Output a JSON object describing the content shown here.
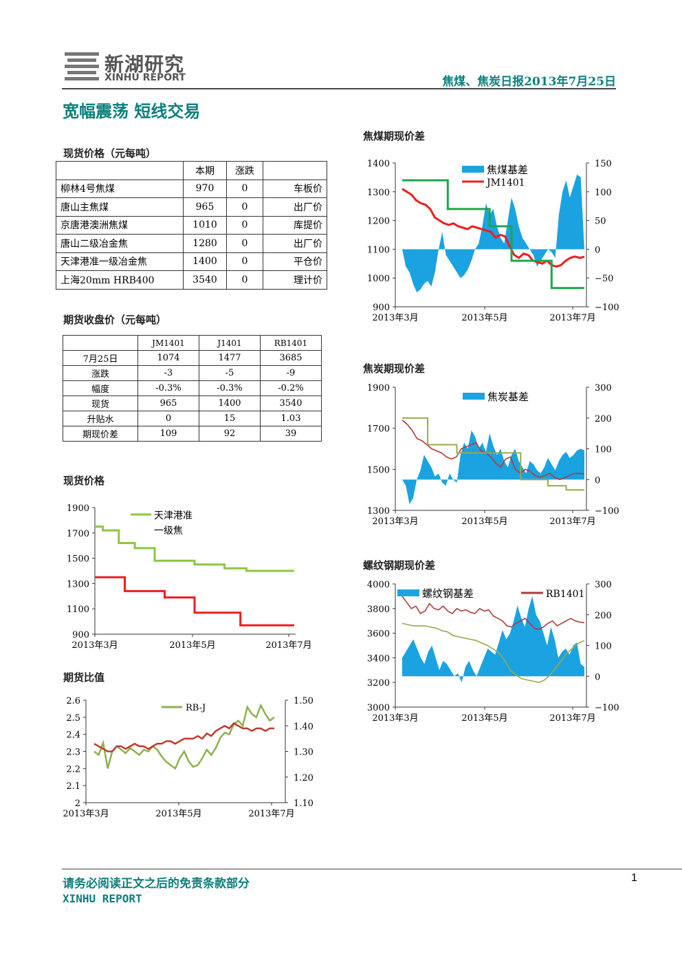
{
  "header": {
    "logo_cn": "新湖研究",
    "logo_en": "XINHU REPORT",
    "report_title": "焦煤、焦炭日报2013年7月25日"
  },
  "headline": "宽幅震荡 短线交易",
  "spot_table": {
    "title": "现货价格（元每吨）",
    "columns": [
      "",
      "本期",
      "涨跌",
      ""
    ],
    "rows": [
      {
        "name": "柳林4号焦煤",
        "price": "970",
        "change": "0",
        "type": "车板价"
      },
      {
        "name": "唐山主焦煤",
        "price": "965",
        "change": "0",
        "type": "出厂价"
      },
      {
        "name": "京唐港澳洲焦煤",
        "price": "1010",
        "change": "0",
        "type": "库提价"
      },
      {
        "name": "唐山二级冶金焦",
        "price": "1280",
        "change": "0",
        "type": "出厂价"
      },
      {
        "name": "天津港准一级冶金焦",
        "price": "1400",
        "change": "0",
        "type": "平仓价"
      },
      {
        "name": "上海20mm HRB400",
        "price": "3540",
        "change": "0",
        "type": "理计价"
      }
    ]
  },
  "futures_table": {
    "title": "期货收盘价（元每吨）",
    "columns": [
      "",
      "JM1401",
      "J1401",
      "RB1401"
    ],
    "rows": [
      [
        "7月25日",
        "1074",
        "1477",
        "3685"
      ],
      [
        "涨跌",
        "-3",
        "-5",
        "-9"
      ],
      [
        "幅度",
        "-0.3%",
        "-0.3%",
        "-0.2%"
      ],
      [
        "现货",
        "965",
        "1400",
        "3540"
      ],
      [
        "升贴水",
        "0",
        "15",
        "1.03"
      ],
      [
        "期现价差",
        "109",
        "92",
        "39"
      ]
    ]
  },
  "sections": {
    "spot_price": "现货价格",
    "futures_ratio": "期货比值",
    "jm_basis": "焦煤期现价差",
    "j_basis": "焦炭期现价差",
    "rb_basis": "螺纹钢期现价差"
  },
  "chart_data": [
    {
      "id": "spot_price",
      "type": "line",
      "x_ticks": [
        "2013年3月",
        "2013年5月",
        "2013年7月"
      ],
      "y_ticks": [
        "1900",
        "1700",
        "1500",
        "1300",
        "1100",
        "900"
      ],
      "ylim": [
        900,
        1900
      ],
      "series": [
        {
          "name": "天津港准一级焦",
          "color": "#8dc63f",
          "points": [
            [
              0,
              1750
            ],
            [
              0.04,
              1750
            ],
            [
              0.04,
              1720
            ],
            [
              0.12,
              1720
            ],
            [
              0.12,
              1620
            ],
            [
              0.2,
              1620
            ],
            [
              0.2,
              1580
            ],
            [
              0.3,
              1580
            ],
            [
              0.3,
              1480
            ],
            [
              0.5,
              1480
            ],
            [
              0.5,
              1450
            ],
            [
              0.65,
              1450
            ],
            [
              0.65,
              1420
            ],
            [
              0.76,
              1420
            ],
            [
              0.76,
              1400
            ],
            [
              1,
              1400
            ]
          ]
        },
        {
          "name": "",
          "color": "#ee1c1c",
          "points": [
            [
              0,
              1350
            ],
            [
              0.15,
              1350
            ],
            [
              0.15,
              1240
            ],
            [
              0.35,
              1240
            ],
            [
              0.35,
              1190
            ],
            [
              0.5,
              1190
            ],
            [
              0.5,
              1070
            ],
            [
              0.73,
              1070
            ],
            [
              0.73,
              970
            ],
            [
              1,
              970
            ]
          ]
        }
      ]
    },
    {
      "id": "futures_ratio",
      "type": "line",
      "x_ticks": [
        "2013年3月",
        "2013年5月",
        "2013年7月"
      ],
      "y_left_ticks": [
        "2.6",
        "2.5",
        "2.4",
        "2.3",
        "2.2",
        "2.1",
        "2"
      ],
      "y_right_ticks": [
        "1.50",
        "1.40",
        "1.30",
        "1.20",
        "1.10"
      ],
      "ylim_left": [
        2.0,
        2.6
      ],
      "ylim_right": [
        1.1,
        1.5
      ],
      "series": [
        {
          "name": "RB-J",
          "color": "#8db050",
          "axis": "left",
          "values": [
            2.3,
            2.28,
            2.35,
            2.2,
            2.3,
            2.33,
            2.31,
            2.29,
            2.32,
            2.3,
            2.28,
            2.31,
            2.3,
            2.33,
            2.31,
            2.27,
            2.24,
            2.22,
            2.2,
            2.26,
            2.3,
            2.24,
            2.21,
            2.22,
            2.26,
            2.31,
            2.28,
            2.32,
            2.38,
            2.41,
            2.4,
            2.46,
            2.48,
            2.45,
            2.56,
            2.52,
            2.5,
            2.57,
            2.52,
            2.48,
            2.5
          ]
        },
        {
          "name": "",
          "color": "#c0392b",
          "axis": "right",
          "values": [
            1.33,
            1.32,
            1.31,
            1.3,
            1.3,
            1.32,
            1.32,
            1.31,
            1.32,
            1.33,
            1.32,
            1.32,
            1.31,
            1.32,
            1.33,
            1.33,
            1.34,
            1.34,
            1.33,
            1.34,
            1.35,
            1.35,
            1.35,
            1.36,
            1.35,
            1.37,
            1.36,
            1.38,
            1.39,
            1.4,
            1.39,
            1.41,
            1.4,
            1.39,
            1.39,
            1.38,
            1.39,
            1.39,
            1.38,
            1.39,
            1.39
          ]
        }
      ]
    },
    {
      "id": "jm_basis",
      "type": "area+line",
      "x_ticks": [
        "2013年3月",
        "2013年5月",
        "2013年7月"
      ],
      "y_left_ticks": [
        "1400",
        "1300",
        "1200",
        "1100",
        "1000",
        "900"
      ],
      "y_right_ticks": [
        "150",
        "100",
        "50",
        "0",
        "−50",
        "−100"
      ],
      "ylim_left": [
        900,
        1400
      ],
      "ylim_right": [
        -100,
        150
      ],
      "series": [
        {
          "name": "焦煤基差",
          "color": "#1aa3e0",
          "axis": "right",
          "values": [
            0,
            -30,
            -40,
            -60,
            -75,
            -70,
            -60,
            -55,
            -65,
            -40,
            0,
            30,
            -10,
            -20,
            -30,
            -40,
            -50,
            -45,
            -35,
            -20,
            0,
            10,
            40,
            80,
            60,
            70,
            40,
            20,
            10,
            50,
            90,
            70,
            40,
            20,
            10,
            0,
            -10,
            -30,
            -20,
            -10,
            0,
            -5,
            -15,
            60,
            100,
            120,
            90,
            110,
            130,
            125,
            0
          ]
        },
        {
          "name": "JM1401",
          "color": "#ee1c1c",
          "axis": "left",
          "values": [
            1310,
            1300,
            1290,
            1270,
            1260,
            1255,
            1240,
            1210,
            1200,
            1190,
            1185,
            1190,
            1180,
            1175,
            1170,
            1180,
            1175,
            1170,
            1165,
            1160,
            1140,
            1150,
            1145,
            1110,
            1080,
            1070,
            1085,
            1080,
            1060,
            1055,
            1050,
            1060,
            1045,
            1040,
            1045,
            1060,
            1070,
            1075,
            1070,
            1074
          ]
        },
        {
          "name": "",
          "color": "#1da64a",
          "axis": "left",
          "step": [
            [
              0,
              1340
            ],
            [
              0.25,
              1340
            ],
            [
              0.25,
              1240
            ],
            [
              0.48,
              1240
            ],
            [
              0.48,
              1180
            ],
            [
              0.6,
              1180
            ],
            [
              0.6,
              1060
            ],
            [
              0.82,
              1060
            ],
            [
              0.82,
              965
            ],
            [
              1,
              965
            ]
          ]
        }
      ]
    },
    {
      "id": "j_basis",
      "type": "area+line",
      "x_ticks": [
        "2013年3月",
        "2013年5月",
        "2013年7月"
      ],
      "y_left_ticks": [
        "1900",
        "1700",
        "1500",
        "1300"
      ],
      "y_right_ticks": [
        "300",
        "200",
        "100",
        "0",
        "−100"
      ],
      "ylim_left": [
        1300,
        1900
      ],
      "ylim_right": [
        -100,
        300
      ],
      "series": [
        {
          "name": "焦炭基差",
          "color": "#1aa3e0",
          "axis": "right",
          "values": [
            0,
            -20,
            -80,
            -60,
            0,
            30,
            80,
            60,
            40,
            10,
            20,
            -10,
            -20,
            20,
            0,
            -10,
            80,
            120,
            100,
            160,
            140,
            100,
            120,
            90,
            150,
            110,
            80,
            100,
            60,
            40,
            80,
            100,
            60,
            40,
            20,
            60,
            50,
            30,
            20,
            40,
            70,
            50,
            30,
            60,
            80,
            90,
            70,
            80,
            95,
            100,
            95
          ]
        },
        {
          "name": "",
          "color": "#b03a3a",
          "axis": "left",
          "values": [
            1740,
            1720,
            1690,
            1650,
            1640,
            1620,
            1600,
            1590,
            1580,
            1560,
            1550,
            1560,
            1600,
            1610,
            1620,
            1630,
            1590,
            1580,
            1560,
            1530,
            1510,
            1550,
            1560,
            1500,
            1480,
            1500,
            1490,
            1470,
            1460,
            1470,
            1480,
            1460,
            1450,
            1460,
            1470,
            1480,
            1480,
            1477
          ]
        },
        {
          "name": "",
          "color": "#9aa84a",
          "axis": "left",
          "step": [
            [
              0,
              1750
            ],
            [
              0.14,
              1750
            ],
            [
              0.14,
              1620
            ],
            [
              0.3,
              1620
            ],
            [
              0.3,
              1580
            ],
            [
              0.65,
              1580
            ],
            [
              0.65,
              1450
            ],
            [
              0.8,
              1450
            ],
            [
              0.8,
              1420
            ],
            [
              0.9,
              1420
            ],
            [
              0.9,
              1400
            ],
            [
              1,
              1400
            ]
          ]
        }
      ]
    },
    {
      "id": "rb_basis",
      "type": "area+line",
      "x_ticks": [
        "2013年3月",
        "2013年5月",
        "2013年7月"
      ],
      "y_left_ticks": [
        "4000",
        "3800",
        "3600",
        "3400",
        "3200",
        "3000"
      ],
      "y_right_ticks": [
        "300",
        "200",
        "100",
        "0",
        "−100"
      ],
      "ylim_left": [
        3000,
        4000
      ],
      "ylim_right": [
        -100,
        300
      ],
      "series": [
        {
          "name": "螺纹钢基差",
          "color": "#1aa3e0",
          "axis": "right",
          "values": [
            60,
            80,
            100,
            120,
            90,
            60,
            40,
            80,
            100,
            60,
            20,
            50,
            40,
            20,
            0,
            10,
            -20,
            30,
            50,
            20,
            0,
            30,
            60,
            90,
            80,
            70,
            110,
            150,
            120,
            140,
            180,
            230,
            190,
            160,
            220,
            260,
            200,
            180,
            140,
            100,
            160,
            120,
            60,
            80,
            90,
            70,
            100,
            110,
            40,
            30
          ]
        },
        {
          "name": "RB1401",
          "color": "#b03a3a",
          "axis": "left",
          "values": [
            3900,
            3850,
            3800,
            3820,
            3760,
            3780,
            3840,
            3800,
            3790,
            3820,
            3780,
            3760,
            3800,
            3780,
            3790,
            3770,
            3760,
            3800,
            3780,
            3790,
            3740,
            3720,
            3700,
            3660,
            3650,
            3680,
            3700,
            3720,
            3680,
            3640,
            3630,
            3650,
            3680,
            3700,
            3660,
            3680,
            3700,
            3720,
            3700,
            3690,
            3685
          ]
        },
        {
          "name": "",
          "color": "#9aa84a",
          "axis": "left",
          "values": [
            3680,
            3670,
            3660,
            3660,
            3660,
            3650,
            3640,
            3620,
            3610,
            3580,
            3570,
            3560,
            3550,
            3540,
            3520,
            3500,
            3470,
            3440,
            3380,
            3300,
            3260,
            3230,
            3220,
            3210,
            3200,
            3220,
            3260,
            3320,
            3380,
            3440,
            3480,
            3520,
            3540
          ]
        }
      ]
    }
  ],
  "footer": {
    "disclaimer": "请务必阅读正文之后的免责条款部分",
    "brand": "XINHU REPORT",
    "page": "1"
  }
}
